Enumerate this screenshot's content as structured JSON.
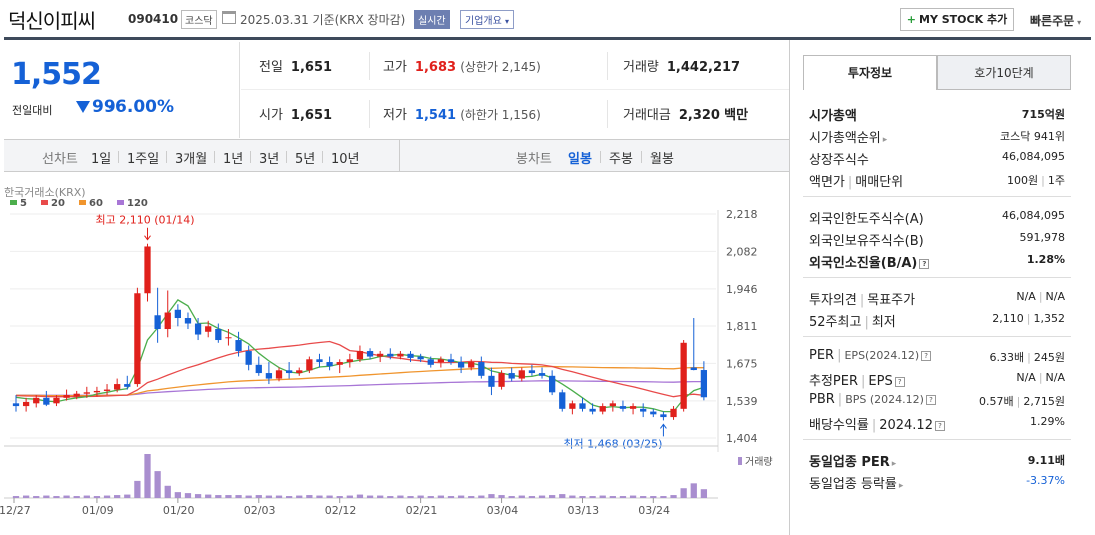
{
  "header": {
    "name": "덕신이피씨",
    "code": "090410",
    "market": "코스닥",
    "date": "2025.03.31",
    "date_basis": "기준(KRX 장마감)",
    "realtime": "실시간",
    "company_overview": "기업개요",
    "mystock": "MY STOCK 추가",
    "quick_order": "빠른주문"
  },
  "price": {
    "current": "1,552",
    "change_label": "전일대비",
    "change": "99",
    "change_pct": "-6.00%",
    "color_down": "#1561d6",
    "color_up": "#e0201b"
  },
  "quote": {
    "prev_label": "전일",
    "prev": "1,651",
    "high_label": "고가",
    "high": "1,683",
    "upper_limit": "(상한가 2,145)",
    "volume_label": "거래량",
    "volume": "1,442,217",
    "open_label": "시가",
    "open": "1,651",
    "low_label": "저가",
    "low": "1,541",
    "lower_limit": "(하한가 1,156)",
    "amount_label": "거래대금",
    "amount": "2,320",
    "amount_unit": "백만"
  },
  "periods": {
    "line_label": "선차트",
    "line_items": [
      "1일",
      "1주일",
      "3개월",
      "1년",
      "3년",
      "5년",
      "10년"
    ],
    "candle_label": "봉차트",
    "candle_items": [
      "일봉",
      "주봉",
      "월봉"
    ],
    "candle_selected": "일봉"
  },
  "chart_data": {
    "type": "candlestick",
    "source": "한국거래소(KRX)",
    "ma_legend": [
      {
        "name": "5",
        "color": "#4cae4c"
      },
      {
        "name": "20",
        "color": "#e84a4a"
      },
      {
        "name": "60",
        "color": "#f0952e"
      },
      {
        "name": "120",
        "color": "#a876d6"
      }
    ],
    "y_ticks": [
      "2,218",
      "2,082",
      "1,946",
      "1,811",
      "1,675",
      "1,539",
      "1,404"
    ],
    "y_min": 1404,
    "y_max": 2218,
    "x_ticks": [
      "12/27",
      "01/09",
      "01/20",
      "02/03",
      "02/12",
      "02/21",
      "03/04",
      "03/13",
      "03/24"
    ],
    "high_note": "최고 2,110 (01/14)",
    "low_note": "최저 1,468 (03/25)",
    "volume_label": "거래량",
    "candles": [
      [
        1530,
        1560,
        1500,
        1520
      ],
      [
        1520,
        1550,
        1500,
        1535
      ],
      [
        1530,
        1560,
        1515,
        1550
      ],
      [
        1550,
        1575,
        1520,
        1525
      ],
      [
        1530,
        1560,
        1520,
        1550
      ],
      [
        1550,
        1580,
        1540,
        1560
      ],
      [
        1555,
        1575,
        1545,
        1565
      ],
      [
        1565,
        1590,
        1550,
        1570
      ],
      [
        1570,
        1590,
        1555,
        1575
      ],
      [
        1575,
        1600,
        1560,
        1580
      ],
      [
        1580,
        1620,
        1570,
        1600
      ],
      [
        1600,
        1630,
        1580,
        1590
      ],
      [
        1600,
        1950,
        1590,
        1930
      ],
      [
        1930,
        2110,
        1900,
        2100
      ],
      [
        1850,
        1950,
        1750,
        1800
      ],
      [
        1800,
        1940,
        1770,
        1860
      ],
      [
        1870,
        1890,
        1810,
        1840
      ],
      [
        1840,
        1860,
        1800,
        1820
      ],
      [
        1820,
        1840,
        1760,
        1780
      ],
      [
        1790,
        1830,
        1770,
        1810
      ],
      [
        1800,
        1820,
        1750,
        1760
      ],
      [
        1770,
        1800,
        1740,
        1770
      ],
      [
        1760,
        1790,
        1700,
        1720
      ],
      [
        1720,
        1740,
        1650,
        1670
      ],
      [
        1670,
        1700,
        1630,
        1640
      ],
      [
        1640,
        1680,
        1600,
        1620
      ],
      [
        1620,
        1660,
        1610,
        1650
      ],
      [
        1650,
        1680,
        1620,
        1640
      ],
      [
        1640,
        1660,
        1630,
        1650
      ],
      [
        1650,
        1700,
        1640,
        1690
      ],
      [
        1690,
        1710,
        1660,
        1680
      ],
      [
        1680,
        1700,
        1650,
        1665
      ],
      [
        1670,
        1690,
        1640,
        1680
      ],
      [
        1680,
        1710,
        1660,
        1690
      ],
      [
        1690,
        1740,
        1680,
        1720
      ],
      [
        1720,
        1730,
        1690,
        1700
      ],
      [
        1700,
        1720,
        1680,
        1710
      ],
      [
        1710,
        1730,
        1690,
        1700
      ],
      [
        1700,
        1720,
        1690,
        1710
      ],
      [
        1710,
        1720,
        1680,
        1695
      ],
      [
        1700,
        1710,
        1680,
        1690
      ],
      [
        1690,
        1700,
        1660,
        1670
      ],
      [
        1680,
        1700,
        1660,
        1690
      ],
      [
        1690,
        1710,
        1670,
        1680
      ],
      [
        1680,
        1700,
        1640,
        1660
      ],
      [
        1660,
        1690,
        1650,
        1680
      ],
      [
        1680,
        1700,
        1620,
        1630
      ],
      [
        1630,
        1660,
        1560,
        1590
      ],
      [
        1590,
        1650,
        1580,
        1640
      ],
      [
        1640,
        1660,
        1610,
        1620
      ],
      [
        1620,
        1660,
        1610,
        1650
      ],
      [
        1650,
        1670,
        1630,
        1640
      ],
      [
        1640,
        1660,
        1620,
        1630
      ],
      [
        1630,
        1650,
        1560,
        1570
      ],
      [
        1570,
        1580,
        1500,
        1510
      ],
      [
        1510,
        1540,
        1490,
        1530
      ],
      [
        1530,
        1550,
        1500,
        1510
      ],
      [
        1510,
        1530,
        1490,
        1500
      ],
      [
        1500,
        1530,
        1490,
        1520
      ],
      [
        1520,
        1540,
        1500,
        1530
      ],
      [
        1520,
        1540,
        1500,
        1510
      ],
      [
        1510,
        1530,
        1490,
        1520
      ],
      [
        1510,
        1530,
        1480,
        1500
      ],
      [
        1500,
        1510,
        1480,
        1490
      ],
      [
        1490,
        1500,
        1468,
        1480
      ],
      [
        1480,
        1520,
        1470,
        1510
      ],
      [
        1510,
        1760,
        1500,
        1750
      ],
      [
        1660,
        1840,
        1650,
        1651
      ],
      [
        1651,
        1683,
        1541,
        1552
      ]
    ],
    "volumes": [
      4,
      5,
      4,
      5,
      4,
      5,
      4,
      5,
      4,
      5,
      6,
      7,
      35,
      90,
      55,
      25,
      12,
      10,
      8,
      7,
      6,
      6,
      6,
      5,
      6,
      5,
      5,
      4,
      5,
      6,
      5,
      5,
      4,
      5,
      7,
      5,
      5,
      4,
      5,
      4,
      5,
      4,
      5,
      4,
      5,
      4,
      5,
      8,
      6,
      4,
      5,
      4,
      5,
      6,
      8,
      5,
      4,
      4,
      5,
      4,
      4,
      5,
      4,
      4,
      4,
      6,
      20,
      30,
      18
    ]
  },
  "invest": {
    "tab_info": "투자정보",
    "tab_orderbook": "호가10단계",
    "market_cap_label": "시가총액",
    "market_cap": "715억원",
    "rank_label": "시가총액순위",
    "rank": "코스닥 941위",
    "shares_label": "상장주식수",
    "shares": "46,084,095",
    "face_label": "액면가",
    "unit_label": "매매단위",
    "face": "100원",
    "unit": "1주",
    "foreign_limit_label": "외국인한도주식수(A)",
    "foreign_limit": "46,084,095",
    "foreign_hold_label": "외국인보유주식수(B)",
    "foreign_hold": "591,978",
    "foreign_ratio_label": "외국인소진율(B/A)",
    "foreign_ratio": "1.28%",
    "opinion_label": "투자의견",
    "target_label": "목표주가",
    "opinion": "N/A",
    "target": "N/A",
    "w52_label": "52주최고",
    "w52_low_label": "최저",
    "w52_high": "2,110",
    "w52_low": "1,352",
    "per_label": "PER",
    "eps_label": "EPS(2024.12)",
    "per": "6.33배",
    "eps": "245원",
    "est_per_label": "추정PER",
    "est_eps_label": "EPS",
    "est_per": "N/A",
    "est_eps": "N/A",
    "pbr_label": "PBR",
    "bps_label": "BPS (2024.12)",
    "pbr": "0.57배",
    "bps": "2,715원",
    "div_label": "배당수익률",
    "div_period": "2024.12",
    "div": "1.29%",
    "sector_per_label": "동일업종 PER",
    "sector_per": "9.11배",
    "sector_chg_label": "동일업종 등락률",
    "sector_chg": "-3.37%"
  }
}
